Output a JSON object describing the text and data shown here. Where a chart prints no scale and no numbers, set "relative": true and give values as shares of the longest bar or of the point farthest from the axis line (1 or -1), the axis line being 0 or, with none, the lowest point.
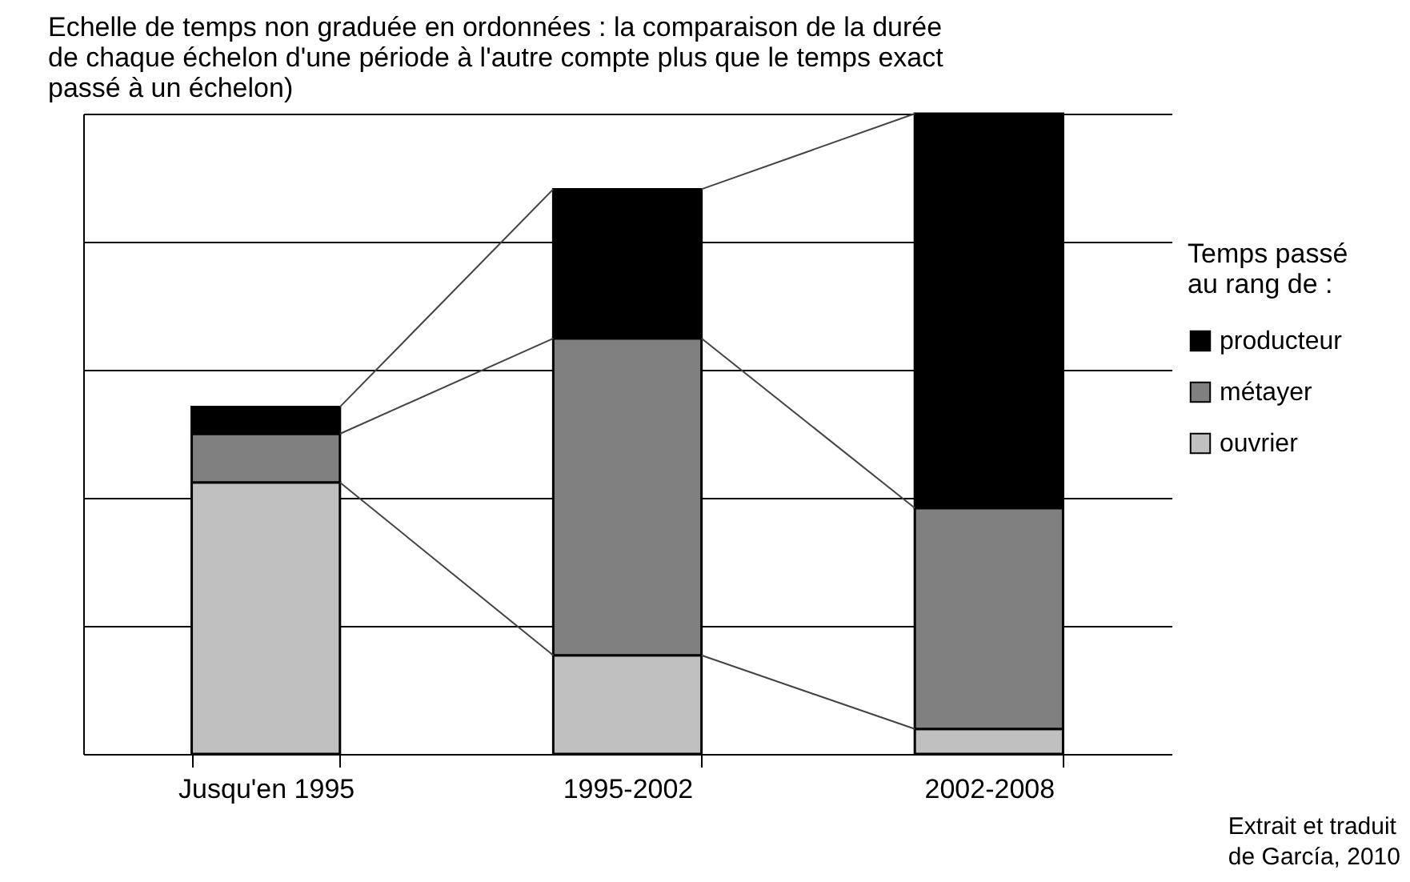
{
  "chart_data": {
    "type": "bar",
    "stacked": true,
    "relative": true,
    "grid": "y",
    "legend": "right",
    "title": "Echelle de temps non graduée en ordonnées : la comparaison de la durée de chaque échelon d'une période à l'autre compte plus que le temps exact passé à un échelon)",
    "legend_title": "Temps passé au rang de :",
    "annotations": [
      "Extrait et traduit de García, 2010"
    ],
    "categories": [
      "Jusqu'en 1995",
      "1995-2002",
      "2002-2008"
    ],
    "series": [
      {
        "name": "ouvrier",
        "color": "#c0c0c0",
        "values": [
          0.424,
          0.154,
          0.039
        ]
      },
      {
        "name": "métayer",
        "color": "#808080",
        "values": [
          0.076,
          0.495,
          0.345
        ]
      },
      {
        "name": "producteur",
        "color": "#000000",
        "values": [
          0.042,
          0.233,
          0.616
        ]
      }
    ]
  }
}
